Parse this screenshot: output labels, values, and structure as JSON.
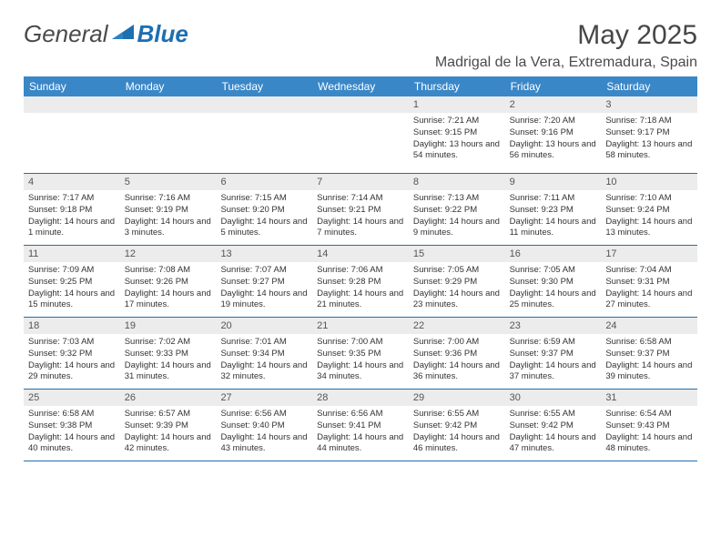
{
  "brand": {
    "part1": "General",
    "part2": "Blue"
  },
  "title": "May 2025",
  "location": "Madrigal de la Vera, Extremadura, Spain",
  "colors": {
    "header_bg": "#3a87c8",
    "header_text": "#ffffff",
    "rule": "#1e6fb0",
    "daynum_bg": "#ececec",
    "body_text": "#333333",
    "title_text": "#464646"
  },
  "typography": {
    "title_fontsize": 30,
    "location_fontsize": 16,
    "dayhead_fontsize": 12,
    "daynum_fontsize": 11,
    "body_fontsize": 9.5
  },
  "day_headers": [
    "Sunday",
    "Monday",
    "Tuesday",
    "Wednesday",
    "Thursday",
    "Friday",
    "Saturday"
  ],
  "weeks": [
    [
      {
        "n": "",
        "lines": []
      },
      {
        "n": "",
        "lines": []
      },
      {
        "n": "",
        "lines": []
      },
      {
        "n": "",
        "lines": []
      },
      {
        "n": "1",
        "lines": [
          "Sunrise: 7:21 AM",
          "Sunset: 9:15 PM",
          "Daylight: 13 hours and 54 minutes."
        ]
      },
      {
        "n": "2",
        "lines": [
          "Sunrise: 7:20 AM",
          "Sunset: 9:16 PM",
          "Daylight: 13 hours and 56 minutes."
        ]
      },
      {
        "n": "3",
        "lines": [
          "Sunrise: 7:18 AM",
          "Sunset: 9:17 PM",
          "Daylight: 13 hours and 58 minutes."
        ]
      }
    ],
    [
      {
        "n": "4",
        "lines": [
          "Sunrise: 7:17 AM",
          "Sunset: 9:18 PM",
          "Daylight: 14 hours and 1 minute."
        ]
      },
      {
        "n": "5",
        "lines": [
          "Sunrise: 7:16 AM",
          "Sunset: 9:19 PM",
          "Daylight: 14 hours and 3 minutes."
        ]
      },
      {
        "n": "6",
        "lines": [
          "Sunrise: 7:15 AM",
          "Sunset: 9:20 PM",
          "Daylight: 14 hours and 5 minutes."
        ]
      },
      {
        "n": "7",
        "lines": [
          "Sunrise: 7:14 AM",
          "Sunset: 9:21 PM",
          "Daylight: 14 hours and 7 minutes."
        ]
      },
      {
        "n": "8",
        "lines": [
          "Sunrise: 7:13 AM",
          "Sunset: 9:22 PM",
          "Daylight: 14 hours and 9 minutes."
        ]
      },
      {
        "n": "9",
        "lines": [
          "Sunrise: 7:11 AM",
          "Sunset: 9:23 PM",
          "Daylight: 14 hours and 11 minutes."
        ]
      },
      {
        "n": "10",
        "lines": [
          "Sunrise: 7:10 AM",
          "Sunset: 9:24 PM",
          "Daylight: 14 hours and 13 minutes."
        ]
      }
    ],
    [
      {
        "n": "11",
        "lines": [
          "Sunrise: 7:09 AM",
          "Sunset: 9:25 PM",
          "Daylight: 14 hours and 15 minutes."
        ]
      },
      {
        "n": "12",
        "lines": [
          "Sunrise: 7:08 AM",
          "Sunset: 9:26 PM",
          "Daylight: 14 hours and 17 minutes."
        ]
      },
      {
        "n": "13",
        "lines": [
          "Sunrise: 7:07 AM",
          "Sunset: 9:27 PM",
          "Daylight: 14 hours and 19 minutes."
        ]
      },
      {
        "n": "14",
        "lines": [
          "Sunrise: 7:06 AM",
          "Sunset: 9:28 PM",
          "Daylight: 14 hours and 21 minutes."
        ]
      },
      {
        "n": "15",
        "lines": [
          "Sunrise: 7:05 AM",
          "Sunset: 9:29 PM",
          "Daylight: 14 hours and 23 minutes."
        ]
      },
      {
        "n": "16",
        "lines": [
          "Sunrise: 7:05 AM",
          "Sunset: 9:30 PM",
          "Daylight: 14 hours and 25 minutes."
        ]
      },
      {
        "n": "17",
        "lines": [
          "Sunrise: 7:04 AM",
          "Sunset: 9:31 PM",
          "Daylight: 14 hours and 27 minutes."
        ]
      }
    ],
    [
      {
        "n": "18",
        "lines": [
          "Sunrise: 7:03 AM",
          "Sunset: 9:32 PM",
          "Daylight: 14 hours and 29 minutes."
        ]
      },
      {
        "n": "19",
        "lines": [
          "Sunrise: 7:02 AM",
          "Sunset: 9:33 PM",
          "Daylight: 14 hours and 31 minutes."
        ]
      },
      {
        "n": "20",
        "lines": [
          "Sunrise: 7:01 AM",
          "Sunset: 9:34 PM",
          "Daylight: 14 hours and 32 minutes."
        ]
      },
      {
        "n": "21",
        "lines": [
          "Sunrise: 7:00 AM",
          "Sunset: 9:35 PM",
          "Daylight: 14 hours and 34 minutes."
        ]
      },
      {
        "n": "22",
        "lines": [
          "Sunrise: 7:00 AM",
          "Sunset: 9:36 PM",
          "Daylight: 14 hours and 36 minutes."
        ]
      },
      {
        "n": "23",
        "lines": [
          "Sunrise: 6:59 AM",
          "Sunset: 9:37 PM",
          "Daylight: 14 hours and 37 minutes."
        ]
      },
      {
        "n": "24",
        "lines": [
          "Sunrise: 6:58 AM",
          "Sunset: 9:37 PM",
          "Daylight: 14 hours and 39 minutes."
        ]
      }
    ],
    [
      {
        "n": "25",
        "lines": [
          "Sunrise: 6:58 AM",
          "Sunset: 9:38 PM",
          "Daylight: 14 hours and 40 minutes."
        ]
      },
      {
        "n": "26",
        "lines": [
          "Sunrise: 6:57 AM",
          "Sunset: 9:39 PM",
          "Daylight: 14 hours and 42 minutes."
        ]
      },
      {
        "n": "27",
        "lines": [
          "Sunrise: 6:56 AM",
          "Sunset: 9:40 PM",
          "Daylight: 14 hours and 43 minutes."
        ]
      },
      {
        "n": "28",
        "lines": [
          "Sunrise: 6:56 AM",
          "Sunset: 9:41 PM",
          "Daylight: 14 hours and 44 minutes."
        ]
      },
      {
        "n": "29",
        "lines": [
          "Sunrise: 6:55 AM",
          "Sunset: 9:42 PM",
          "Daylight: 14 hours and 46 minutes."
        ]
      },
      {
        "n": "30",
        "lines": [
          "Sunrise: 6:55 AM",
          "Sunset: 9:42 PM",
          "Daylight: 14 hours and 47 minutes."
        ]
      },
      {
        "n": "31",
        "lines": [
          "Sunrise: 6:54 AM",
          "Sunset: 9:43 PM",
          "Daylight: 14 hours and 48 minutes."
        ]
      }
    ]
  ]
}
